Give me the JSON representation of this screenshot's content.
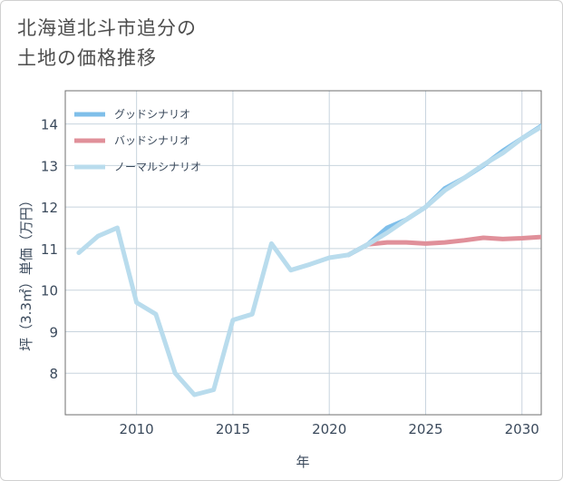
{
  "title_lines": [
    "北海道北斗市追分の",
    "土地の価格推移"
  ],
  "chart_data": {
    "type": "line",
    "title": "北海道北斗市追分の土地の価格推移",
    "xlabel": "年",
    "ylabel": "坪（3.3㎡）単価（万円）",
    "xlim": [
      2006.3,
      2031
    ],
    "ylim": [
      7,
      14.8
    ],
    "x_ticks": [
      2010,
      2015,
      2020,
      2025,
      2030
    ],
    "y_ticks": [
      8,
      9,
      10,
      11,
      12,
      13,
      14
    ],
    "legend_position": "top-left",
    "series": [
      {
        "name": "グッドシナリオ",
        "color": "#7fbfea",
        "points": [
          [
            2021,
            10.85
          ],
          [
            2022,
            11.1
          ],
          [
            2023,
            11.5
          ],
          [
            2024,
            11.7
          ],
          [
            2025,
            12.0
          ],
          [
            2026,
            12.45
          ],
          [
            2027,
            12.7
          ],
          [
            2028,
            13.0
          ],
          [
            2029,
            13.35
          ],
          [
            2030,
            13.65
          ],
          [
            2031,
            13.95
          ]
        ]
      },
      {
        "name": "バッドシナリオ",
        "color": "#e0909a",
        "points": [
          [
            2021,
            10.85
          ],
          [
            2022,
            11.1
          ],
          [
            2023,
            11.15
          ],
          [
            2024,
            11.15
          ],
          [
            2025,
            11.12
          ],
          [
            2026,
            11.15
          ],
          [
            2027,
            11.2
          ],
          [
            2028,
            11.26
          ],
          [
            2029,
            11.23
          ],
          [
            2030,
            11.25
          ],
          [
            2031,
            11.28
          ]
        ]
      },
      {
        "name": "ノーマルシナリオ",
        "color": "#b9dced",
        "points": [
          [
            2007,
            10.9
          ],
          [
            2008,
            11.3
          ],
          [
            2009,
            11.5
          ],
          [
            2010,
            9.7
          ],
          [
            2011,
            9.42
          ],
          [
            2012,
            8.0
          ],
          [
            2013,
            7.48
          ],
          [
            2014,
            7.6
          ],
          [
            2015,
            9.28
          ],
          [
            2016,
            9.42
          ],
          [
            2017,
            11.12
          ],
          [
            2018,
            10.48
          ],
          [
            2019,
            10.62
          ],
          [
            2020,
            10.78
          ],
          [
            2021,
            10.85
          ],
          [
            2022,
            11.1
          ],
          [
            2023,
            11.38
          ],
          [
            2024,
            11.7
          ],
          [
            2025,
            12.0
          ],
          [
            2026,
            12.4
          ],
          [
            2027,
            12.7
          ],
          [
            2028,
            13.02
          ],
          [
            2029,
            13.3
          ],
          [
            2030,
            13.65
          ],
          [
            2031,
            13.93
          ]
        ]
      }
    ]
  }
}
